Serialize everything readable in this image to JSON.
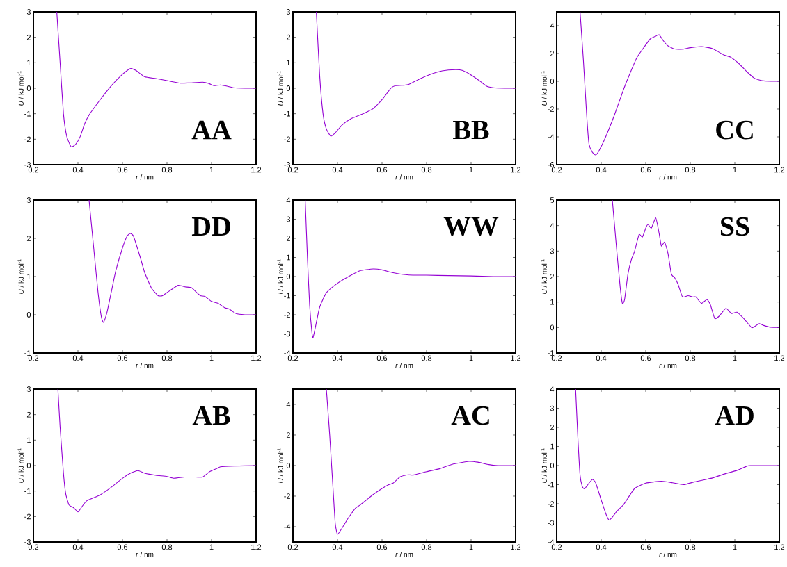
{
  "chart_data": [
    {
      "type": "line",
      "title": "AA",
      "xlabel": "*r* / nm",
      "ylabel": "*U* / kJ mol$^{-1}$",
      "xlim": [
        0.2,
        1.2
      ],
      "ylim": [
        -3,
        3
      ],
      "xticks": [
        0.2,
        0.4,
        0.6,
        0.8,
        1,
        1.2
      ],
      "yticks": [
        -3,
        -2,
        -1,
        0,
        1,
        2,
        3
      ],
      "x": [
        0.305,
        0.32,
        0.335,
        0.35,
        0.37,
        0.39,
        0.41,
        0.43,
        0.45,
        0.5,
        0.55,
        0.6,
        0.635,
        0.66,
        0.7,
        0.75,
        0.8,
        0.86,
        0.9,
        0.96,
        0.99,
        1.01,
        1.04,
        1.07,
        1.1,
        1.15,
        1.2
      ],
      "series": [
        {
          "color": "#9400d3",
          "values": [
            3,
            1.0,
            -1.0,
            -1.9,
            -2.3,
            -2.2,
            -1.9,
            -1.4,
            -1.05,
            -0.45,
            0.1,
            0.55,
            0.77,
            0.7,
            0.45,
            0.38,
            0.3,
            0.2,
            0.21,
            0.24,
            0.18,
            0.1,
            0.13,
            0.08,
            0.02,
            0,
            0
          ]
        }
      ]
    },
    {
      "type": "line",
      "title": "BB",
      "xlabel": "*r* / nm",
      "ylabel": "*U* / kJ mol$^{-1}$",
      "xlim": [
        0.2,
        1.2
      ],
      "ylim": [
        -3,
        3
      ],
      "xticks": [
        0.2,
        0.4,
        0.6,
        0.8,
        1,
        1.2
      ],
      "yticks": [
        -3,
        -2,
        -1,
        0,
        1,
        2,
        3
      ],
      "x": [
        0.305,
        0.32,
        0.335,
        0.35,
        0.37,
        0.39,
        0.42,
        0.46,
        0.52,
        0.56,
        0.6,
        0.64,
        0.66,
        0.7,
        0.72,
        0.77,
        0.82,
        0.87,
        0.93,
        0.96,
        1.0,
        1.04,
        1.07,
        1.1,
        1.15,
        1.2
      ],
      "series": [
        {
          "color": "#9400d3",
          "values": [
            3,
            0.5,
            -1.0,
            -1.6,
            -1.88,
            -1.75,
            -1.45,
            -1.2,
            -0.98,
            -0.8,
            -0.45,
            0,
            0.1,
            0.12,
            0.15,
            0.37,
            0.55,
            0.68,
            0.73,
            0.7,
            0.52,
            0.28,
            0.08,
            0.02,
            0,
            0
          ]
        }
      ]
    },
    {
      "type": "line",
      "title": "CC",
      "xlabel": "*r* / nm",
      "ylabel": "*U* / kJ mol$^{-1}$",
      "xlim": [
        0.2,
        1.2
      ],
      "ylim": [
        -6,
        5
      ],
      "xticks": [
        0.2,
        0.4,
        0.6,
        0.8,
        1,
        1.2
      ],
      "yticks": [
        -6,
        -4,
        -2,
        0,
        2,
        4
      ],
      "x": [
        0.305,
        0.32,
        0.335,
        0.345,
        0.36,
        0.375,
        0.39,
        0.42,
        0.46,
        0.5,
        0.53,
        0.56,
        0.59,
        0.62,
        0.645,
        0.66,
        0.68,
        0.7,
        0.73,
        0.77,
        0.8,
        0.85,
        0.9,
        0.95,
        0.98,
        1.02,
        1.06,
        1.09,
        1.13,
        1.2
      ],
      "series": [
        {
          "color": "#9400d3",
          "values": [
            5,
            1.5,
            -2.5,
            -4.5,
            -5.1,
            -5.3,
            -5.0,
            -4.0,
            -2.4,
            -0.6,
            0.6,
            1.7,
            2.4,
            3.05,
            3.25,
            3.35,
            2.9,
            2.55,
            2.32,
            2.32,
            2.42,
            2.5,
            2.35,
            1.9,
            1.75,
            1.25,
            0.6,
            0.2,
            0.03,
            0
          ]
        }
      ]
    },
    {
      "type": "line",
      "title": "DD",
      "xlabel": "*r* / nm",
      "ylabel": "*U* / kJ mol$^{-1}$",
      "xlim": [
        0.2,
        1.2
      ],
      "ylim": [
        -1,
        3
      ],
      "xticks": [
        0.2,
        0.4,
        0.6,
        0.8,
        1,
        1.2
      ],
      "yticks": [
        -1,
        0,
        1,
        2,
        3
      ],
      "x": [
        0.45,
        0.47,
        0.49,
        0.505,
        0.515,
        0.53,
        0.55,
        0.57,
        0.6,
        0.62,
        0.635,
        0.65,
        0.68,
        0.7,
        0.73,
        0.76,
        0.78,
        0.81,
        0.85,
        0.88,
        0.91,
        0.93,
        0.95,
        0.97,
        1.0,
        1.03,
        1.06,
        1.08,
        1.11,
        1.15,
        1.2
      ],
      "series": [
        {
          "color": "#9400d3",
          "values": [
            3,
            1.8,
            0.6,
            -0.05,
            -0.2,
            0.05,
            0.6,
            1.15,
            1.75,
            2.05,
            2.13,
            2.05,
            1.5,
            1.1,
            0.7,
            0.5,
            0.5,
            0.62,
            0.77,
            0.73,
            0.71,
            0.6,
            0.5,
            0.48,
            0.35,
            0.3,
            0.18,
            0.15,
            0.03,
            0,
            0
          ]
        }
      ]
    },
    {
      "type": "line",
      "title": "WW",
      "xlabel": "*r* / nm",
      "ylabel": "*U* / kJ mol$^{-1}$",
      "xlim": [
        0.2,
        1.2
      ],
      "ylim": [
        -4,
        4
      ],
      "xticks": [
        0.2,
        0.4,
        0.6,
        0.8,
        1,
        1.2
      ],
      "yticks": [
        -4,
        -3,
        -2,
        -1,
        0,
        1,
        2,
        3,
        4
      ],
      "x": [
        0.255,
        0.265,
        0.275,
        0.285,
        0.29,
        0.3,
        0.32,
        0.35,
        0.4,
        0.45,
        0.5,
        0.56,
        0.6,
        0.65,
        0.72,
        0.8,
        0.9,
        1.0,
        1.1,
        1.2
      ],
      "series": [
        {
          "color": "#9400d3",
          "values": [
            4,
            1.0,
            -1.5,
            -2.9,
            -3.2,
            -2.7,
            -1.6,
            -0.85,
            -0.35,
            0.0,
            0.3,
            0.4,
            0.35,
            0.2,
            0.08,
            0.07,
            0.05,
            0.03,
            0.0,
            0
          ]
        }
      ]
    },
    {
      "type": "line",
      "title": "SS",
      "xlabel": "*r* / nm",
      "ylabel": "*U* / kJ mol$^{-1}$",
      "xlim": [
        0.2,
        1.2
      ],
      "ylim": [
        -1,
        5
      ],
      "xticks": [
        0.2,
        0.4,
        0.6,
        0.8,
        1,
        1.2
      ],
      "yticks": [
        -1,
        0,
        1,
        2,
        3,
        4,
        5
      ],
      "x": [
        0.45,
        0.47,
        0.485,
        0.495,
        0.505,
        0.52,
        0.535,
        0.55,
        0.57,
        0.585,
        0.6,
        0.61,
        0.625,
        0.645,
        0.66,
        0.67,
        0.685,
        0.7,
        0.715,
        0.73,
        0.745,
        0.765,
        0.79,
        0.81,
        0.825,
        0.85,
        0.875,
        0.89,
        0.91,
        0.93,
        0.96,
        0.985,
        1.01,
        1.04,
        1.075,
        1.085,
        1.11,
        1.13,
        1.16,
        1.2
      ],
      "series": [
        {
          "color": "#9400d3",
          "values": [
            5,
            3.0,
            1.6,
            0.95,
            1.1,
            2.1,
            2.65,
            3.0,
            3.65,
            3.55,
            3.9,
            4.05,
            3.9,
            4.3,
            3.7,
            3.2,
            3.35,
            2.9,
            2.1,
            1.95,
            1.7,
            1.2,
            1.25,
            1.2,
            1.2,
            0.95,
            1.1,
            0.9,
            0.35,
            0.45,
            0.75,
            0.55,
            0.6,
            0.35,
            0.0,
            0.02,
            0.15,
            0.08,
            0.01,
            0
          ]
        }
      ]
    },
    {
      "type": "line",
      "title": "AB",
      "xlabel": "*r* / nm",
      "ylabel": "*U* / kJ mol$^{-1}$",
      "xlim": [
        0.2,
        1.2
      ],
      "ylim": [
        -3,
        3
      ],
      "xticks": [
        0.2,
        0.4,
        0.6,
        0.8,
        1,
        1.2
      ],
      "yticks": [
        -3,
        -2,
        -1,
        0,
        1,
        2,
        3
      ],
      "x": [
        0.31,
        0.32,
        0.335,
        0.345,
        0.36,
        0.38,
        0.4,
        0.415,
        0.44,
        0.5,
        0.55,
        0.6,
        0.64,
        0.67,
        0.7,
        0.75,
        0.8,
        0.83,
        0.88,
        0.93,
        0.96,
        0.99,
        1.02,
        1.04,
        1.1,
        1.2
      ],
      "series": [
        {
          "color": "#9400d3",
          "values": [
            3,
            1.5,
            -0.3,
            -1.1,
            -1.55,
            -1.65,
            -1.82,
            -1.65,
            -1.38,
            -1.15,
            -0.85,
            -0.5,
            -0.28,
            -0.2,
            -0.3,
            -0.38,
            -0.43,
            -0.5,
            -0.45,
            -0.45,
            -0.45,
            -0.25,
            -0.13,
            -0.05,
            -0.02,
            0
          ]
        }
      ]
    },
    {
      "type": "line",
      "title": "AC",
      "xlabel": "*r* / nm",
      "ylabel": "*U* / kJ mol$^{-1}$",
      "xlim": [
        0.2,
        1.2
      ],
      "ylim": [
        -5,
        5
      ],
      "xticks": [
        0.2,
        0.4,
        0.6,
        0.8,
        1,
        1.2
      ],
      "yticks": [
        -4,
        -2,
        0,
        2,
        4
      ],
      "x": [
        0.35,
        0.365,
        0.38,
        0.39,
        0.4,
        0.42,
        0.45,
        0.48,
        0.5,
        0.53,
        0.56,
        0.6,
        0.63,
        0.65,
        0.68,
        0.7,
        0.72,
        0.74,
        0.8,
        0.86,
        0.92,
        0.99,
        1.03,
        1.08,
        1.12,
        1.2
      ],
      "series": [
        {
          "color": "#9400d3",
          "values": [
            5,
            2.0,
            -1.5,
            -3.8,
            -4.5,
            -4.1,
            -3.4,
            -2.8,
            -2.6,
            -2.25,
            -1.9,
            -1.5,
            -1.25,
            -1.15,
            -0.75,
            -0.65,
            -0.6,
            -0.62,
            -0.4,
            -0.2,
            0.1,
            0.27,
            0.22,
            0.06,
            0,
            0
          ]
        }
      ]
    },
    {
      "type": "line",
      "title": "AD",
      "xlabel": "*r* / nm",
      "ylabel": "*U* / kJ mol$^{-1}$",
      "xlim": [
        0.2,
        1.2
      ],
      "ylim": [
        -4,
        4
      ],
      "xticks": [
        0.2,
        0.4,
        0.6,
        0.8,
        1,
        1.2
      ],
      "yticks": [
        -4,
        -3,
        -2,
        -1,
        0,
        1,
        2,
        3,
        4
      ],
      "x": [
        0.285,
        0.295,
        0.305,
        0.315,
        0.325,
        0.34,
        0.36,
        0.375,
        0.4,
        0.42,
        0.435,
        0.45,
        0.47,
        0.5,
        0.52,
        0.55,
        0.6,
        0.67,
        0.72,
        0.77,
        0.82,
        0.9,
        0.95,
        1.01,
        1.05,
        1.07,
        1.2
      ],
      "series": [
        {
          "color": "#9400d3",
          "values": [
            4,
            1.5,
            -0.5,
            -1.1,
            -1.22,
            -1.0,
            -0.73,
            -0.9,
            -1.8,
            -2.5,
            -2.85,
            -2.7,
            -2.4,
            -2.05,
            -1.7,
            -1.2,
            -0.92,
            -0.82,
            -0.9,
            -1.0,
            -0.85,
            -0.65,
            -0.45,
            -0.25,
            -0.05,
            0,
            0
          ]
        }
      ]
    }
  ]
}
